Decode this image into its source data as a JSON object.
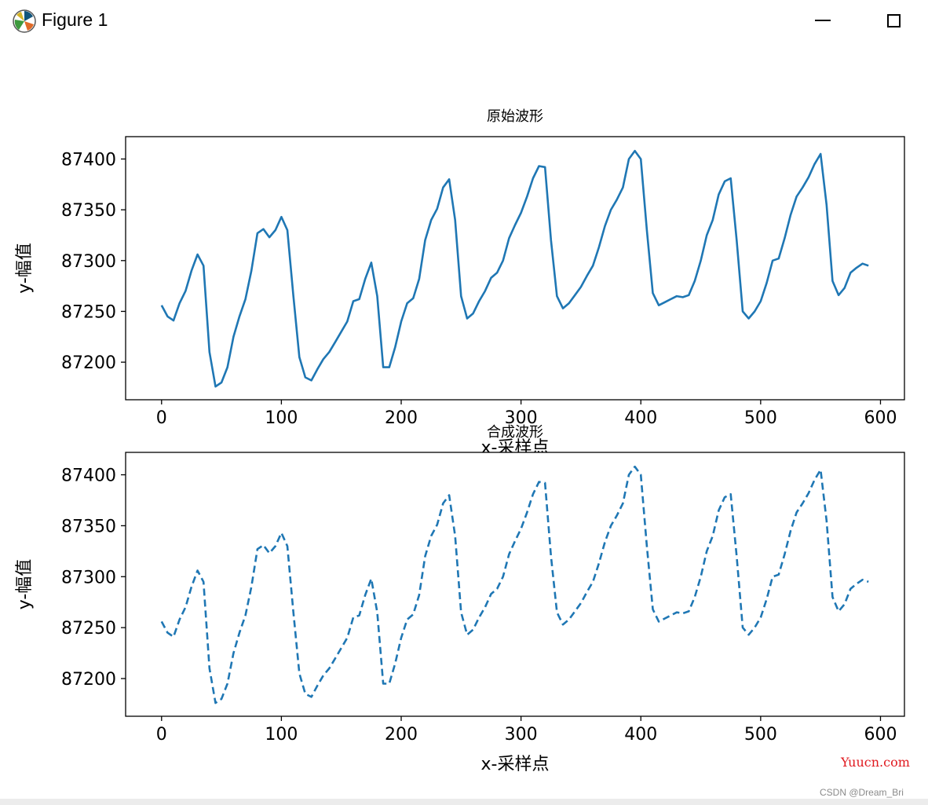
{
  "window": {
    "title": "Figure 1",
    "icons": {
      "app": "matplotlib-icon",
      "minimize": "minimize-icon",
      "maximize": "maximize-icon"
    }
  },
  "watermarks": {
    "site": "Yuucn.com",
    "csdn": "CSDN @Dream_Bri"
  },
  "colors": {
    "line": "#1f77b4"
  },
  "chart_data": [
    {
      "type": "line",
      "title": "原始波形",
      "xlabel": "x-采样点",
      "ylabel": "y-幅值",
      "xlim": [
        -30,
        620
      ],
      "ylim": [
        87163,
        87422
      ],
      "xticks": [
        0,
        100,
        200,
        300,
        400,
        500,
        600
      ],
      "yticks": [
        87200,
        87250,
        87300,
        87350,
        87400
      ],
      "grid": false,
      "line_style": "solid",
      "series": [
        {
          "x": [
            0,
            5,
            10,
            15,
            20,
            25,
            30,
            35,
            40,
            45,
            50,
            55,
            60,
            65,
            70,
            75,
            80,
            85,
            90,
            95,
            100,
            105,
            110,
            115,
            120,
            125,
            130,
            135,
            140,
            145,
            150,
            155,
            160,
            165,
            170,
            175,
            180,
            185,
            190,
            195,
            200,
            205,
            210,
            215,
            220,
            225,
            230,
            235,
            240,
            245,
            250,
            255,
            260,
            265,
            270,
            275,
            280,
            285,
            290,
            295,
            300,
            305,
            310,
            315,
            320,
            325,
            330,
            335,
            340,
            345,
            350,
            355,
            360,
            365,
            370,
            375,
            380,
            385,
            390,
            395,
            400,
            405,
            410,
            415,
            420,
            425,
            430,
            435,
            440,
            445,
            450,
            455,
            460,
            465,
            470,
            475,
            480,
            485,
            490,
            495,
            500,
            505,
            510,
            515,
            520,
            525,
            530,
            535,
            540,
            545,
            550,
            555,
            560,
            565,
            570,
            575,
            580,
            585,
            590
          ],
          "y": [
            87256,
            87245,
            87241,
            87258,
            87270,
            87290,
            87306,
            87295,
            87210,
            87176,
            87180,
            87195,
            87225,
            87245,
            87262,
            87290,
            87327,
            87331,
            87323,
            87330,
            87343,
            87330,
            87265,
            87205,
            87185,
            87182,
            87193,
            87203,
            87210,
            87220,
            87230,
            87240,
            87260,
            87262,
            87282,
            87298,
            87265,
            87195,
            87195,
            87215,
            87240,
            87258,
            87263,
            87282,
            87320,
            87340,
            87351,
            87372,
            87380,
            87340,
            87265,
            87243,
            87248,
            87260,
            87270,
            87283,
            87288,
            87300,
            87322,
            87335,
            87347,
            87363,
            87381,
            87393,
            87392,
            87320,
            87265,
            87253,
            87258,
            87266,
            87274,
            87285,
            87295,
            87313,
            87334,
            87350,
            87360,
            87372,
            87400,
            87408,
            87400,
            87330,
            87268,
            87256,
            87259,
            87262,
            87265,
            87264,
            87266,
            87280,
            87300,
            87325,
            87340,
            87365,
            87378,
            87381,
            87320,
            87250,
            87243,
            87250,
            87260,
            87278,
            87300,
            87302,
            87322,
            87345,
            87363,
            87372,
            87382,
            87395,
            87405,
            87355,
            87280,
            87266,
            87273,
            87288,
            87293,
            87297,
            87295
          ]
        }
      ]
    },
    {
      "type": "line",
      "title": "合成波形",
      "xlabel": "x-采样点",
      "ylabel": "y-幅值",
      "xlim": [
        -30,
        620
      ],
      "ylim": [
        87163,
        87422
      ],
      "xticks": [
        0,
        100,
        200,
        300,
        400,
        500,
        600
      ],
      "yticks": [
        87200,
        87250,
        87300,
        87350,
        87400
      ],
      "grid": false,
      "line_style": "dashed",
      "series": [
        {
          "x": [
            0,
            5,
            10,
            15,
            20,
            25,
            30,
            35,
            40,
            45,
            50,
            55,
            60,
            65,
            70,
            75,
            80,
            85,
            90,
            95,
            100,
            105,
            110,
            115,
            120,
            125,
            130,
            135,
            140,
            145,
            150,
            155,
            160,
            165,
            170,
            175,
            180,
            185,
            190,
            195,
            200,
            205,
            210,
            215,
            220,
            225,
            230,
            235,
            240,
            245,
            250,
            255,
            260,
            265,
            270,
            275,
            280,
            285,
            290,
            295,
            300,
            305,
            310,
            315,
            320,
            325,
            330,
            335,
            340,
            345,
            350,
            355,
            360,
            365,
            370,
            375,
            380,
            385,
            390,
            395,
            400,
            405,
            410,
            415,
            420,
            425,
            430,
            435,
            440,
            445,
            450,
            455,
            460,
            465,
            470,
            475,
            480,
            485,
            490,
            495,
            500,
            505,
            510,
            515,
            520,
            525,
            530,
            535,
            540,
            545,
            550,
            555,
            560,
            565,
            570,
            575,
            580,
            585,
            590
          ],
          "y": [
            87256,
            87245,
            87241,
            87258,
            87270,
            87290,
            87306,
            87295,
            87210,
            87176,
            87180,
            87195,
            87225,
            87245,
            87262,
            87290,
            87327,
            87331,
            87323,
            87330,
            87343,
            87330,
            87265,
            87205,
            87185,
            87182,
            87193,
            87203,
            87210,
            87220,
            87230,
            87240,
            87260,
            87262,
            87282,
            87298,
            87265,
            87195,
            87195,
            87215,
            87240,
            87258,
            87263,
            87282,
            87320,
            87340,
            87351,
            87372,
            87380,
            87340,
            87265,
            87243,
            87248,
            87260,
            87270,
            87283,
            87288,
            87300,
            87322,
            87335,
            87347,
            87363,
            87381,
            87393,
            87392,
            87320,
            87265,
            87253,
            87258,
            87266,
            87274,
            87285,
            87295,
            87313,
            87334,
            87350,
            87360,
            87372,
            87400,
            87408,
            87400,
            87330,
            87268,
            87256,
            87259,
            87262,
            87265,
            87264,
            87266,
            87280,
            87300,
            87325,
            87340,
            87365,
            87378,
            87381,
            87320,
            87250,
            87243,
            87250,
            87260,
            87278,
            87300,
            87302,
            87322,
            87345,
            87363,
            87372,
            87382,
            87395,
            87405,
            87355,
            87280,
            87266,
            87273,
            87288,
            87293,
            87297,
            87295
          ]
        }
      ]
    }
  ]
}
